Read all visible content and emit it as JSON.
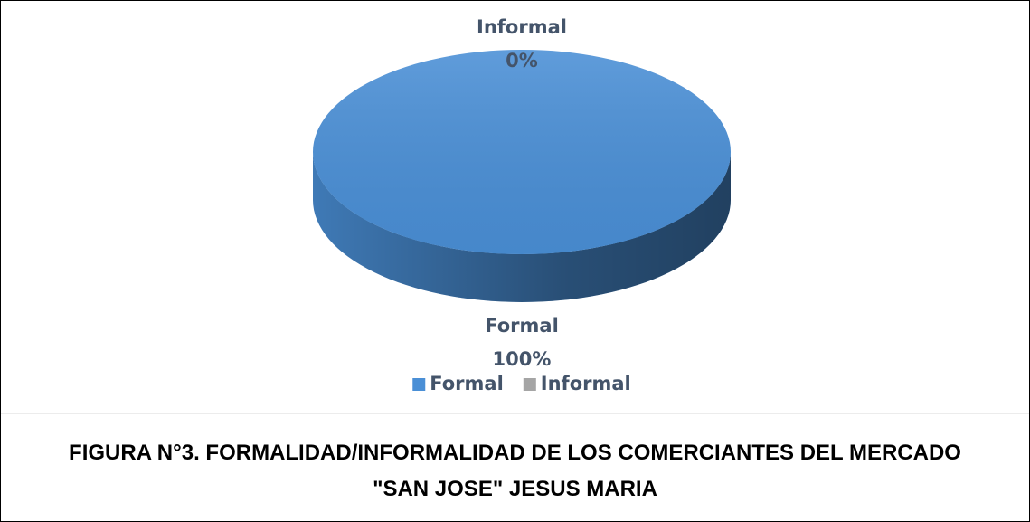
{
  "chart_data": {
    "type": "pie",
    "categories": [
      "Formal",
      "Informal"
    ],
    "values": [
      100,
      0
    ],
    "value_labels": [
      "100%",
      "0%"
    ],
    "colors": [
      "#4a8fd6",
      "#a5a5a5"
    ],
    "legend": "bottom"
  },
  "caption": "FIGURA N°3. FORMALIDAD/INFORMALIDAD DE LOS COMERCIANTES DEL MERCADO \"SAN JOSE\" JESUS MARIA"
}
